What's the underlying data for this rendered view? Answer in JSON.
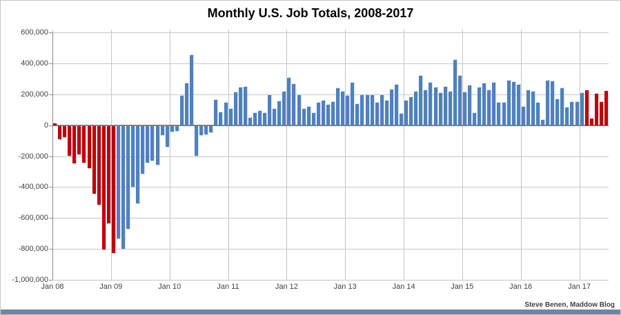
{
  "window": {
    "bottom_strip_color": "#6e86a5"
  },
  "chart_data": {
    "type": "bar",
    "title": "Monthly U.S. Job Totals, 2008-2017",
    "attribution": "Steve Benen, Maddow Blog",
    "xlabel": "",
    "ylabel": "",
    "ylim": [
      -1000000,
      600000
    ],
    "grid": true,
    "legend": null,
    "y_ticks": [
      {
        "value": 600000,
        "label": "600,000"
      },
      {
        "value": 400000,
        "label": "400,000"
      },
      {
        "value": 200000,
        "label": "200,000"
      },
      {
        "value": 0,
        "label": "0"
      },
      {
        "value": -200000,
        "label": "-200,000"
      },
      {
        "value": -400000,
        "label": "-400,000"
      },
      {
        "value": -600000,
        "label": "-600,000"
      },
      {
        "value": -800000,
        "label": "-800,000"
      },
      {
        "value": -1000000,
        "label": "-1,000,000"
      }
    ],
    "x_tick_labels": [
      "Jan 08",
      "Jan 09",
      "Jan 10",
      "Jan 11",
      "Jan 12",
      "Jan 13",
      "Jan 14",
      "Jan 15",
      "Jan 16",
      "Jan 17"
    ],
    "start_month": "2008-01",
    "end_month": "2017-06",
    "colors": {
      "red": "#C00000",
      "blue": "#4F81BD"
    },
    "red_index_ranges": [
      [
        0,
        12
      ],
      [
        109,
        113
      ]
    ],
    "values": [
      13000,
      -87000,
      -75000,
      -192000,
      -241000,
      -184000,
      -237000,
      -274000,
      -440000,
      -512000,
      -800000,
      -632000,
      -820000,
      -730000,
      -797000,
      -665000,
      -392000,
      -500000,
      -308000,
      -237000,
      -225000,
      -250000,
      -60000,
      -135000,
      -37000,
      -35000,
      190000,
      270000,
      455000,
      -195000,
      -60000,
      -55000,
      -40000,
      165000,
      85000,
      145000,
      107000,
      213000,
      242000,
      250000,
      47000,
      80000,
      90000,
      80000,
      195000,
      105000,
      155000,
      218000,
      307000,
      267000,
      196000,
      107000,
      119000,
      80000,
      144000,
      159000,
      133000,
      148000,
      240000,
      215000,
      190000,
      275000,
      135000,
      193000,
      195000,
      195000,
      145000,
      195000,
      160000,
      230000,
      262000,
      75000,
      159000,
      181000,
      218000,
      321000,
      228000,
      277000,
      243000,
      210000,
      250000,
      218000,
      423000,
      320000,
      213000,
      258000,
      77000,
      243000,
      270000,
      225000,
      273000,
      144000,
      144000,
      287000,
      280000,
      262000,
      121000,
      228000,
      218000,
      144000,
      36000,
      287000,
      284000,
      166000,
      240000,
      114000,
      151000,
      148000,
      210000,
      228000,
      44000,
      203000,
      148000,
      222000
    ]
  }
}
